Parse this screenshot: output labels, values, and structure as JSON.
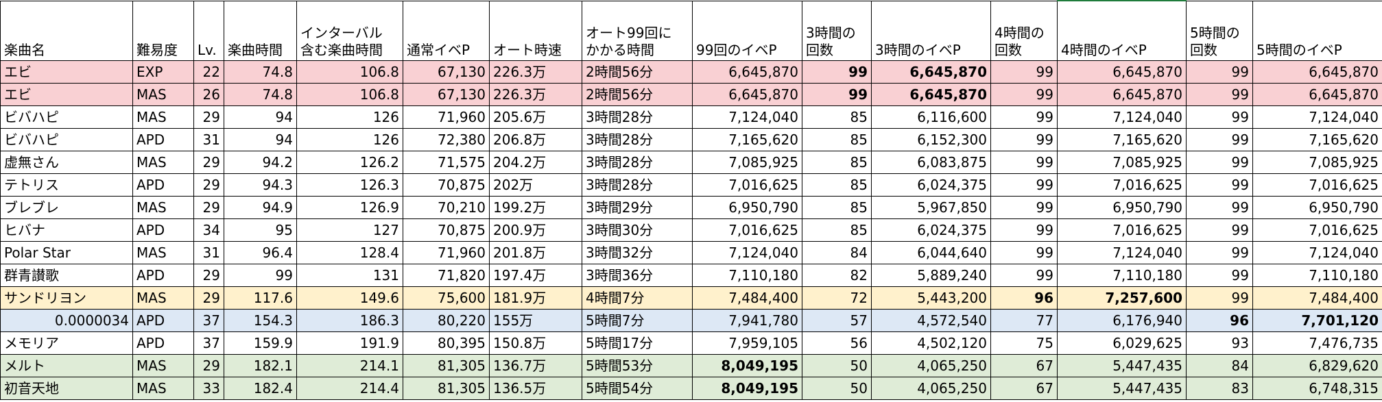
{
  "columns": [
    "楽曲名",
    "難易度",
    "Lv.",
    "楽曲時間",
    "インターバル\n含む楽曲時間",
    "通常イベP",
    "オート時速",
    "オート99回に\nかかる時間",
    "99回のイベP",
    "3時間の\n回数",
    "3時間のイベP",
    "4時間の\n回数",
    "4時間のイベP",
    "5時間の\n回数",
    "5時間のイベP"
  ],
  "rows": [
    {
      "highlight": "pink",
      "bold": [
        9,
        10
      ],
      "cells": [
        "エビ",
        "EXP",
        "22",
        "74.8",
        "106.8",
        "67,130",
        "226.3万",
        "2時間56分",
        "6,645,870",
        "99",
        "6,645,870",
        "99",
        "6,645,870",
        "99",
        "6,645,870"
      ]
    },
    {
      "highlight": "pink",
      "bold": [
        9,
        10
      ],
      "cells": [
        "エビ",
        "MAS",
        "26",
        "74.8",
        "106.8",
        "67,130",
        "226.3万",
        "2時間56分",
        "6,645,870",
        "99",
        "6,645,870",
        "99",
        "6,645,870",
        "99",
        "6,645,870"
      ]
    },
    {
      "highlight": "",
      "bold": [],
      "cells": [
        "ビバハピ",
        "MAS",
        "29",
        "94",
        "126",
        "71,960",
        "205.6万",
        "3時間28分",
        "7,124,040",
        "85",
        "6,116,600",
        "99",
        "7,124,040",
        "99",
        "7,124,040"
      ]
    },
    {
      "highlight": "",
      "bold": [],
      "cells": [
        "ビバハピ",
        "APD",
        "31",
        "94",
        "126",
        "72,380",
        "206.8万",
        "3時間28分",
        "7,165,620",
        "85",
        "6,152,300",
        "99",
        "7,165,620",
        "99",
        "7,165,620"
      ]
    },
    {
      "highlight": "",
      "bold": [],
      "cells": [
        "虚無さん",
        "MAS",
        "29",
        "94.2",
        "126.2",
        "71,575",
        "204.2万",
        "3時間28分",
        "7,085,925",
        "85",
        "6,083,875",
        "99",
        "7,085,925",
        "99",
        "7,085,925"
      ]
    },
    {
      "highlight": "",
      "bold": [],
      "cells": [
        "テトリス",
        "APD",
        "29",
        "94.3",
        "126.3",
        "70,875",
        "202万",
        "3時間28分",
        "7,016,625",
        "85",
        "6,024,375",
        "99",
        "7,016,625",
        "99",
        "7,016,625"
      ]
    },
    {
      "highlight": "",
      "bold": [],
      "cells": [
        "ブレブレ",
        "MAS",
        "29",
        "94.9",
        "126.9",
        "70,210",
        "199.2万",
        "3時間29分",
        "6,950,790",
        "85",
        "5,967,850",
        "99",
        "6,950,790",
        "99",
        "6,950,790"
      ]
    },
    {
      "highlight": "",
      "bold": [],
      "cells": [
        "ヒバナ",
        "APD",
        "34",
        "95",
        "127",
        "70,875",
        "200.9万",
        "3時間30分",
        "7,016,625",
        "85",
        "6,024,375",
        "99",
        "7,016,625",
        "99",
        "7,016,625"
      ]
    },
    {
      "highlight": "",
      "bold": [],
      "cells": [
        "Polar Star",
        "MAS",
        "31",
        "96.4",
        "128.4",
        "71,960",
        "201.8万",
        "3時間32分",
        "7,124,040",
        "84",
        "6,044,640",
        "99",
        "7,124,040",
        "99",
        "7,124,040"
      ]
    },
    {
      "highlight": "",
      "bold": [],
      "cells": [
        "群青讃歌",
        "APD",
        "29",
        "99",
        "131",
        "71,820",
        "197.4万",
        "3時間36分",
        "7,110,180",
        "82",
        "5,889,240",
        "99",
        "7,110,180",
        "99",
        "7,110,180"
      ]
    },
    {
      "highlight": "yellow",
      "bold": [
        11,
        12
      ],
      "cells": [
        "サンドリヨン",
        "MAS",
        "29",
        "117.6",
        "149.6",
        "75,600",
        "181.9万",
        "4時間7分",
        "7,484,400",
        "72",
        "5,443,200",
        "96",
        "7,257,600",
        "99",
        "7,484,400"
      ]
    },
    {
      "highlight": "blue",
      "bold": [
        13,
        14
      ],
      "cells": [
        "0.0000034",
        "APD",
        "37",
        "154.3",
        "186.3",
        "80,220",
        "155万",
        "5時間7分",
        "7,941,780",
        "57",
        "4,572,540",
        "77",
        "6,176,940",
        "96",
        "7,701,120"
      ]
    },
    {
      "highlight": "",
      "bold": [],
      "cells": [
        "メモリア",
        "APD",
        "37",
        "159.9",
        "191.9",
        "80,395",
        "150.8万",
        "5時間17分",
        "7,959,105",
        "56",
        "4,502,120",
        "75",
        "6,029,625",
        "93",
        "7,476,735"
      ]
    },
    {
      "highlight": "green",
      "bold": [
        8
      ],
      "cells": [
        "メルト",
        "MAS",
        "29",
        "182.1",
        "214.1",
        "81,305",
        "136.7万",
        "5時間53分",
        "8,049,195",
        "50",
        "4,065,250",
        "67",
        "5,447,435",
        "84",
        "6,829,620"
      ]
    },
    {
      "highlight": "green",
      "bold": [
        8
      ],
      "cells": [
        "初音天地",
        "MAS",
        "33",
        "182.4",
        "214.4",
        "81,305",
        "136.5万",
        "5時間54分",
        "8,049,195",
        "50",
        "4,065,250",
        "67",
        "5,447,435",
        "83",
        "6,748,315"
      ]
    }
  ]
}
